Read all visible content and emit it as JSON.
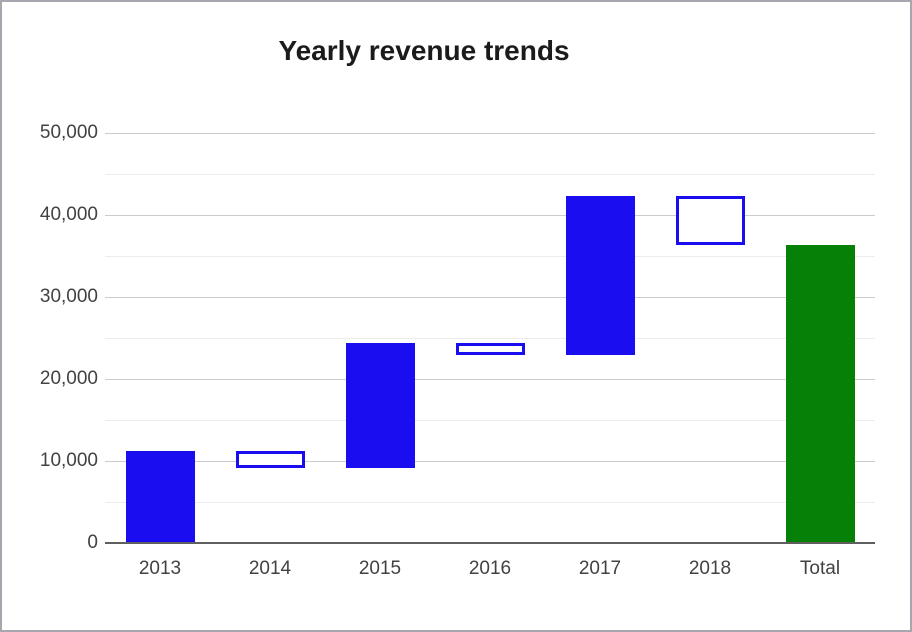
{
  "window": {
    "background": "#ffffff",
    "border_color": "#a6a6ae"
  },
  "chart_data": {
    "type": "bar",
    "subtype": "waterfall",
    "title": "Yearly revenue trends",
    "categories": [
      "2013",
      "2014",
      "2015",
      "2016",
      "2017",
      "2018",
      "Total"
    ],
    "bars": [
      {
        "label": "2013",
        "start": 0,
        "end": 11200,
        "kind": "increase"
      },
      {
        "label": "2014",
        "start": 11200,
        "end": 9200,
        "kind": "decrease"
      },
      {
        "label": "2015",
        "start": 9200,
        "end": 24400,
        "kind": "increase"
      },
      {
        "label": "2016",
        "start": 24400,
        "end": 22900,
        "kind": "decrease"
      },
      {
        "label": "2017",
        "start": 22900,
        "end": 42300,
        "kind": "increase"
      },
      {
        "label": "2018",
        "start": 42300,
        "end": 36300,
        "kind": "decrease"
      },
      {
        "label": "Total",
        "start": 0,
        "end": 36300,
        "kind": "total"
      }
    ],
    "xlabel": "",
    "ylabel": "",
    "ylim": [
      0,
      50000
    ],
    "y_major_ticks": [
      0,
      10000,
      20000,
      30000,
      40000,
      50000
    ],
    "y_tick_labels": [
      "0",
      "10,000",
      "20,000",
      "30,000",
      "40,000",
      "50,000"
    ],
    "y_minor_ticks": [
      5000,
      15000,
      25000,
      35000,
      45000
    ],
    "grid": true,
    "legend": "none",
    "colors": {
      "increase_fill": "#1a0df0",
      "decrease_fill": "#ffffff",
      "decrease_border": "#1a0df0",
      "total_fill": "#068006",
      "grid_major": "#cccccc",
      "grid_minor": "#ececec",
      "axis_line": "#5f5f5f",
      "title_text": "#1b1b1b",
      "axis_text": "#424242"
    }
  }
}
